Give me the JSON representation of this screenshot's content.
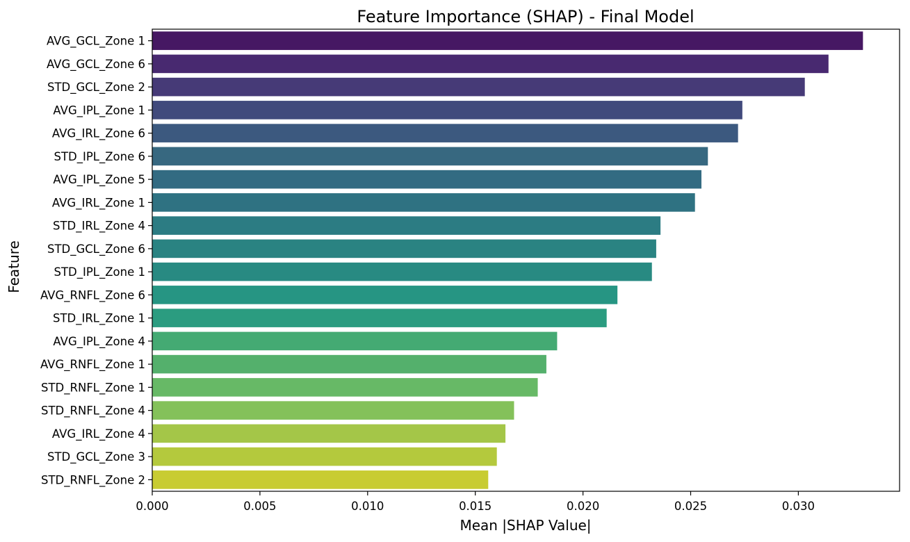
{
  "chart_data": {
    "type": "bar",
    "orientation": "horizontal",
    "title": "Feature Importance (SHAP) - Final Model",
    "xlabel": "Mean |SHAP Value|",
    "ylabel": "Feature",
    "xlim": [
      0,
      0.0347
    ],
    "xticks": [
      "0.000",
      "0.005",
      "0.010",
      "0.015",
      "0.020",
      "0.025",
      "0.030"
    ],
    "grid": false,
    "legend": "none",
    "colormap": "viridis",
    "categories": [
      "AVG_GCL_Zone 1",
      "AVG_GCL_Zone 6",
      "STD_GCL_Zone 2",
      "AVG_IPL_Zone 1",
      "AVG_IRL_Zone 6",
      "STD_IPL_Zone 6",
      "AVG_IPL_Zone 5",
      "AVG_IRL_Zone 1",
      "STD_IRL_Zone 4",
      "STD_GCL_Zone 6",
      "STD_IPL_Zone 1",
      "AVG_RNFL_Zone 6",
      "STD_IRL_Zone 1",
      "AVG_IPL_Zone 4",
      "AVG_RNFL_Zone 1",
      "STD_RNFL_Zone 1",
      "STD_RNFL_Zone 4",
      "AVG_IRL_Zone 4",
      "STD_GCL_Zone 3",
      "STD_RNFL_Zone 2"
    ],
    "values": [
      0.033,
      0.0314,
      0.0303,
      0.0274,
      0.0272,
      0.0258,
      0.0255,
      0.0252,
      0.0236,
      0.0234,
      0.0232,
      0.0216,
      0.0211,
      0.0188,
      0.0183,
      0.0179,
      0.0168,
      0.0164,
      0.016,
      0.0156
    ],
    "colors": [
      "#461863",
      "#482970",
      "#463a77",
      "#414a7c",
      "#3c597f",
      "#376880",
      "#336b82",
      "#2f7282",
      "#2c7c83",
      "#2a8382",
      "#288a82",
      "#269583",
      "#2b9c80",
      "#44aa73",
      "#54b06c",
      "#67b966",
      "#84c15a",
      "#a4c648",
      "#b4c93d",
      "#c8cc32"
    ]
  }
}
